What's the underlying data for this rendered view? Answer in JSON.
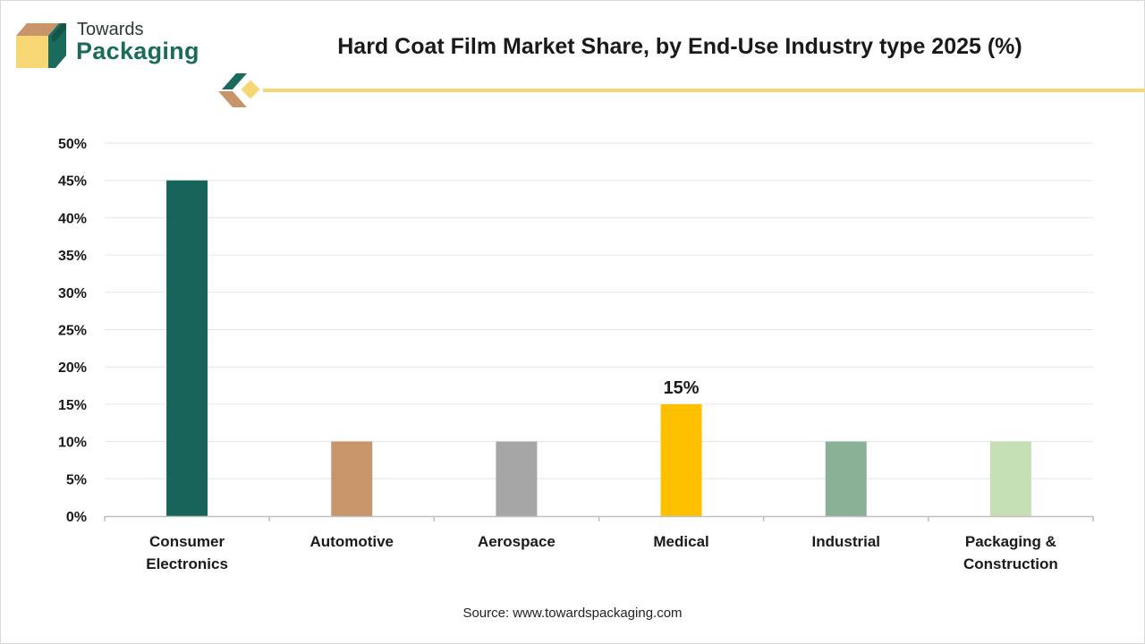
{
  "brand": {
    "name_line1": "Towards",
    "name_line2": "Packaging"
  },
  "colors": {
    "brand_green": "#1b6b5c",
    "brand_tan": "#c8956a",
    "brand_yellow": "#f7d774",
    "accent_line": "#f7d774"
  },
  "chart_data": {
    "type": "bar",
    "title": "Hard Coat Film Market Share, by End-Use Industry type 2025 (%)",
    "xlabel": "",
    "ylabel": "",
    "ylim": [
      0,
      50
    ],
    "yticks": [
      "0%",
      "5%",
      "10%",
      "15%",
      "20%",
      "25%",
      "30%",
      "35%",
      "40%",
      "45%",
      "50%"
    ],
    "grid": true,
    "categories": [
      [
        "Consumer",
        "Electronics"
      ],
      [
        "Automotive"
      ],
      [
        "Aerospace"
      ],
      [
        "Medical"
      ],
      [
        "Industrial"
      ],
      [
        "Packaging &",
        "Construction"
      ]
    ],
    "values": [
      45,
      10,
      10,
      15,
      10,
      10
    ],
    "bar_colors": [
      "#18645a",
      "#c8956a",
      "#a6a6a6",
      "#ffc000",
      "#8ab096",
      "#c5e0b4"
    ],
    "data_labels": [
      {
        "index": 3,
        "text": "15%"
      }
    ]
  },
  "source": "Source: www.towardspackaging.com"
}
